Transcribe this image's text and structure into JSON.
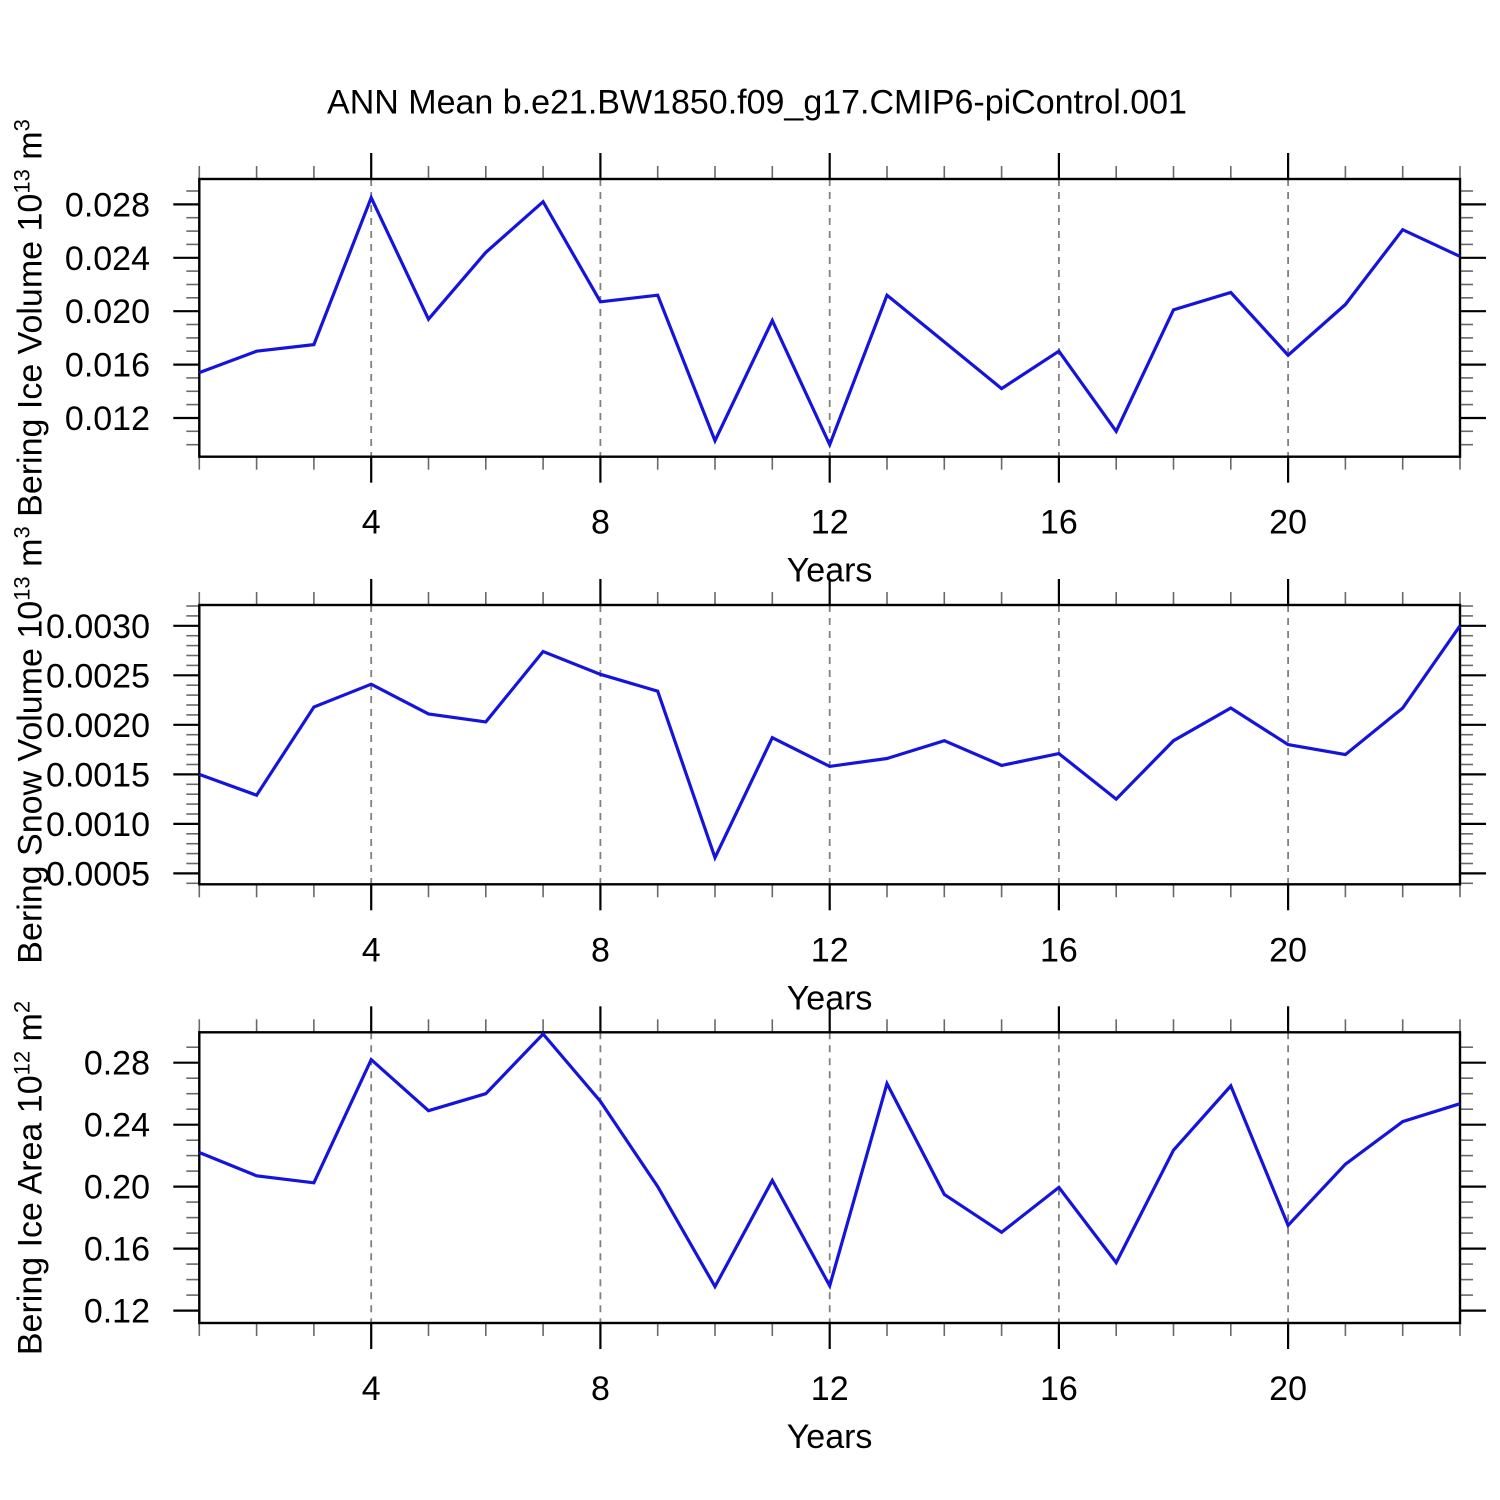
{
  "title": "ANN Mean b.e21.BW1850.f09_g17.CMIP6-piControl.001",
  "colors": {
    "line": "#1414dd",
    "gridline": "#808080",
    "axis": "#000000"
  },
  "chart_data": [
    {
      "type": "line",
      "ylabel": "Bering Ice Volume 10^13 m^3",
      "ylabel_parts": {
        "base": "Bering Ice Volume 10",
        "exp": "13",
        "unit": " m",
        "unit_exp": "3"
      },
      "xlabel": "Years",
      "x": [
        1,
        2,
        3,
        4,
        5,
        6,
        7,
        8,
        9,
        10,
        11,
        12,
        13,
        14,
        15,
        16,
        17,
        18,
        19,
        20,
        21,
        22,
        23
      ],
      "values": [
        0.0154,
        0.017,
        0.0175,
        0.0285,
        0.0194,
        0.0244,
        0.0282,
        0.0207,
        0.0212,
        0.0103,
        0.0193,
        0.01,
        0.0212,
        0.0177,
        0.0142,
        0.017,
        0.011,
        0.0201,
        0.0214,
        0.0167,
        0.0205,
        0.0261,
        0.0241
      ],
      "xlim": [
        1,
        23
      ],
      "ylim": [
        0.0091,
        0.0299
      ],
      "xticks": [
        4,
        8,
        12,
        16,
        20
      ],
      "xtick_labels": [
        "4",
        "8",
        "12",
        "16",
        "20"
      ],
      "x_minor_step": 1,
      "yticks": [
        0.012,
        0.016,
        0.02,
        0.024,
        0.028
      ],
      "ytick_labels": [
        "0.012",
        "0.016",
        "0.020",
        "0.024",
        "0.028"
      ],
      "y_minor_step": 0.001,
      "grid": "vertical dashed gridlines at major x ticks",
      "line_color": "#1414dd"
    },
    {
      "type": "line",
      "ylabel": "Bering Snow Volume 10^13 m^3",
      "ylabel_parts": {
        "base": "Bering Snow Volume 10",
        "exp": "13",
        "unit": " m",
        "unit_exp": "3"
      },
      "xlabel": "Years",
      "x": [
        1,
        2,
        3,
        4,
        5,
        6,
        7,
        8,
        9,
        10,
        11,
        12,
        13,
        14,
        15,
        16,
        17,
        18,
        19,
        20,
        21,
        22,
        23
      ],
      "values": [
        0.0015,
        0.00129,
        0.00218,
        0.00241,
        0.00211,
        0.00203,
        0.00274,
        0.00251,
        0.00234,
        0.00066,
        0.00187,
        0.00158,
        0.00166,
        0.00184,
        0.00159,
        0.00171,
        0.00125,
        0.00184,
        0.00217,
        0.0018,
        0.0017,
        0.00217,
        0.003
      ],
      "xlim": [
        1,
        23
      ],
      "ylim": [
        0.00039,
        0.00321
      ],
      "xticks": [
        4,
        8,
        12,
        16,
        20
      ],
      "xtick_labels": [
        "4",
        "8",
        "12",
        "16",
        "20"
      ],
      "x_minor_step": 1,
      "yticks": [
        0.0005,
        0.001,
        0.0015,
        0.002,
        0.0025,
        0.003
      ],
      "ytick_labels": [
        "0.0005",
        "0.0010",
        "0.0015",
        "0.0020",
        "0.0025",
        "0.0030"
      ],
      "y_minor_step": 0.0001,
      "grid": "vertical dashed gridlines at major x ticks",
      "line_color": "#1414dd"
    },
    {
      "type": "line",
      "ylabel": "Bering Ice Area 10^12 m^2",
      "ylabel_parts": {
        "base": "Bering Ice Area 10",
        "exp": "12",
        "unit": " m",
        "unit_exp": "2"
      },
      "xlabel": "Years",
      "x": [
        1,
        2,
        3,
        4,
        5,
        6,
        7,
        8,
        9,
        10,
        11,
        12,
        13,
        14,
        15,
        16,
        17,
        18,
        19,
        20,
        21,
        22,
        23
      ],
      "values": [
        0.222,
        0.207,
        0.2025,
        0.282,
        0.249,
        0.26,
        0.2985,
        0.255,
        0.2,
        0.1355,
        0.204,
        0.136,
        0.2665,
        0.195,
        0.1705,
        0.1995,
        0.151,
        0.2235,
        0.265,
        0.175,
        0.2145,
        0.242,
        0.2535
      ],
      "xlim": [
        1,
        23
      ],
      "ylim": [
        0.112,
        0.2996
      ],
      "xticks": [
        4,
        8,
        12,
        16,
        20
      ],
      "xtick_labels": [
        "4",
        "8",
        "12",
        "16",
        "20"
      ],
      "x_minor_step": 1,
      "yticks": [
        0.12,
        0.16,
        0.2,
        0.24,
        0.28
      ],
      "ytick_labels": [
        "0.12",
        "0.16",
        "0.20",
        "0.24",
        "0.28"
      ],
      "y_minor_step": 0.01,
      "grid": "vertical dashed gridlines at major x ticks",
      "line_color": "#1414dd"
    }
  ]
}
